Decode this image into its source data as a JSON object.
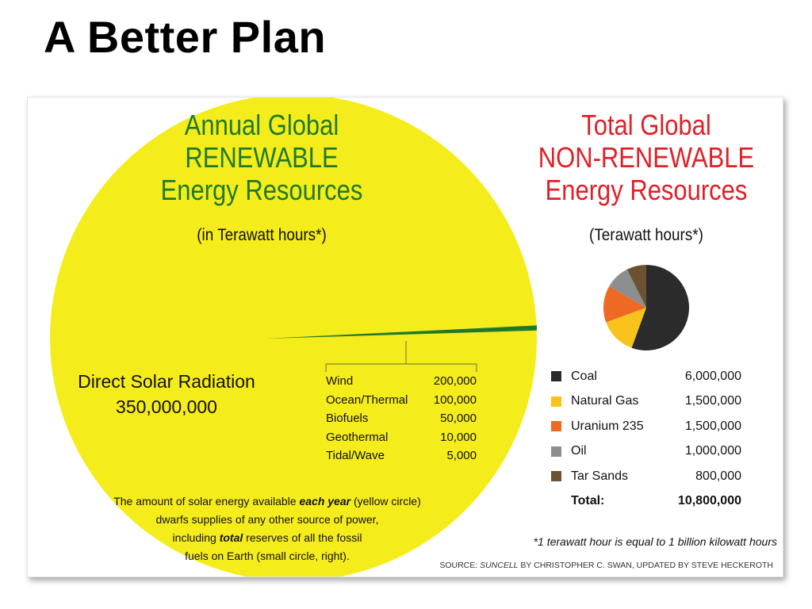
{
  "slide": {
    "title": "A Better Plan"
  },
  "renewable": {
    "title_lines": [
      "Annual Global",
      "RENEWABLE",
      "Energy Resources"
    ],
    "subtitle": "(in Terawatt hours*)",
    "solar_label": "Direct Solar Radiation",
    "solar_value": "350,000,000",
    "items": [
      {
        "name": "Wind",
        "value": "200,000"
      },
      {
        "name": "Ocean/Thermal",
        "value": "100,000"
      },
      {
        "name": "Biofuels",
        "value": "50,000"
      },
      {
        "name": "Geothermal",
        "value": "10,000"
      },
      {
        "name": "Tidal/Wave",
        "value": "5,000"
      }
    ],
    "caption": {
      "line1_pre": "The amount of solar energy available ",
      "line1_em": "each year",
      "line1_post": " (yellow circle)",
      "line2": "dwarfs supplies of any other source of power,",
      "line3_pre": "including ",
      "line3_em": "total",
      "line3_post": " reserves of all the fossil",
      "line4": "fuels on Earth (small circle, right)."
    }
  },
  "nonrenewable": {
    "title_lines": [
      "Total Global",
      "NON-RENEWABLE",
      "Energy Resources"
    ],
    "subtitle": "(Terawatt hours*)",
    "items": [
      {
        "name": "Coal",
        "value": "6,000,000",
        "color": "#2b2b2b"
      },
      {
        "name": "Natural Gas",
        "value": "1,500,000",
        "color": "#f9c31c"
      },
      {
        "name": "Uranium 235",
        "value": "1,500,000",
        "color": "#ee6a24"
      },
      {
        "name": "Oil",
        "value": "1,000,000",
        "color": "#8d8e90"
      },
      {
        "name": "Tar Sands",
        "value": "800,000",
        "color": "#6b5232"
      }
    ],
    "total_label": "Total:",
    "total_value": "10,800,000"
  },
  "footnote": "*1 terawatt hour is equal to 1 billion kilowatt hours",
  "source": {
    "pre": "SOURCE: ",
    "em": "SUNCELL",
    "post": " BY CHRISTOPHER C. SWAN, UPDATED BY STEVE HECKEROTH"
  },
  "colors": {
    "solar": "#f5ec1b",
    "renewable_wedge": "#1e7a2a"
  },
  "chart_data": [
    {
      "type": "pie",
      "title": "Annual Global RENEWABLE Energy Resources",
      "subtitle": "(in Terawatt hours*)",
      "labels": [
        "Direct Solar Radiation",
        "Wind",
        "Ocean/Thermal",
        "Biofuels",
        "Geothermal",
        "Tidal/Wave"
      ],
      "values": [
        350000000,
        200000,
        100000,
        50000,
        10000,
        5000
      ],
      "colors": [
        "#f5ec1b",
        "#1e7a2a",
        "#1e7a2a",
        "#1e7a2a",
        "#1e7a2a",
        "#1e7a2a"
      ]
    },
    {
      "type": "pie",
      "title": "Total Global NON-RENEWABLE Energy Resources",
      "subtitle": "(Terawatt hours*)",
      "labels": [
        "Coal",
        "Natural Gas",
        "Uranium 235",
        "Oil",
        "Tar Sands"
      ],
      "values": [
        6000000,
        1500000,
        1500000,
        1000000,
        800000
      ],
      "colors": [
        "#2b2b2b",
        "#f9c31c",
        "#ee6a24",
        "#8d8e90",
        "#6b5232"
      ],
      "total": 10800000
    }
  ]
}
